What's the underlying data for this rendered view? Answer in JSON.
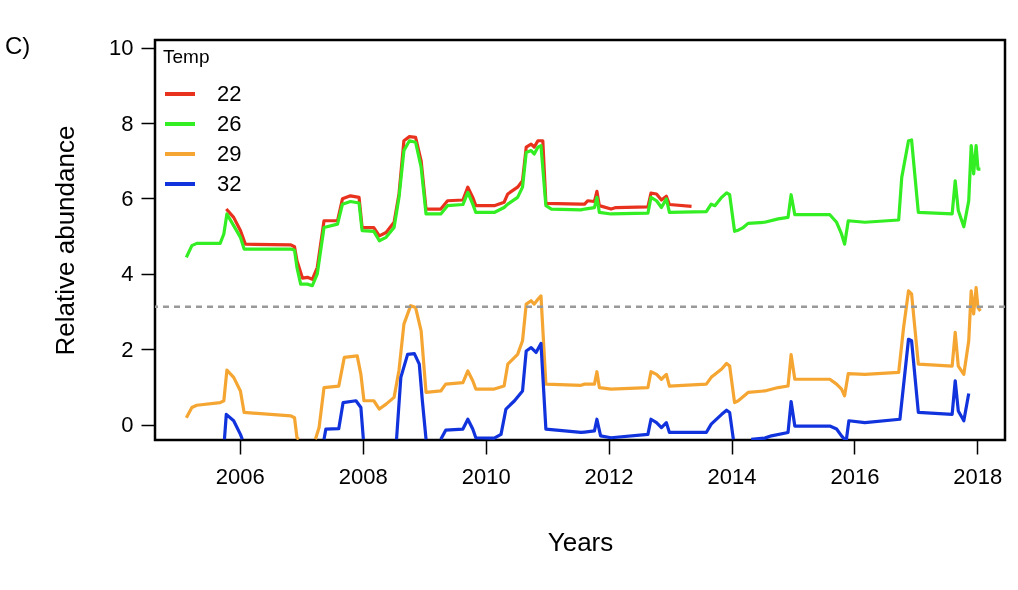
{
  "chart_data": {
    "type": "line",
    "title": "C)",
    "xlabel": "Years",
    "ylabel": "Relative abundance",
    "legend_title": "Temp",
    "legend": "top left",
    "grid": false,
    "xlim": [
      2004.62,
      2018.45
    ],
    "xticks": [
      2006,
      2008,
      2010,
      2012,
      2014,
      2016,
      2018
    ],
    "ylim": [
      -0.4,
      10.2
    ],
    "yticks": [
      0,
      2,
      4,
      6,
      8,
      10
    ],
    "ref_lines": [
      {
        "axis": "y",
        "value": 3.13,
        "color": "#999999",
        "line_style": "dashed"
      }
    ],
    "series": [
      {
        "name": "22",
        "color": "#e8321e",
        "x": [
          2005.78,
          2005.9,
          2006.01,
          2006.09,
          2006.83,
          2006.89,
          2006.93,
          2007.02,
          2007.1,
          2007.18,
          2007.26,
          2007.37,
          2007.59,
          2007.67,
          2007.8,
          2007.94,
          2007.99,
          2008.18,
          2008.27,
          2008.38,
          2008.51,
          2008.59,
          2008.67,
          2008.76,
          2008.86,
          2008.95,
          2009.03,
          2009.27,
          2009.38,
          2009.63,
          2009.71,
          2009.79,
          2009.84,
          2010.14,
          2010.3,
          2010.36,
          2010.52,
          2010.6,
          2010.66,
          2010.74,
          2010.79,
          2010.85,
          2010.93,
          2010.98,
          2011.55,
          2011.61,
          2011.66,
          2011.77,
          2011.81,
          2011.85,
          2012.04,
          2012.12,
          2012.64,
          2012.69,
          2012.78,
          2012.86,
          2012.94,
          2012.99,
          2013.35
        ],
        "values": [
          5.72,
          5.5,
          5.15,
          4.79,
          4.77,
          4.72,
          4.35,
          3.89,
          3.91,
          3.86,
          4.17,
          5.41,
          5.41,
          5.99,
          6.07,
          6.03,
          5.23,
          5.23,
          5.01,
          5.1,
          5.37,
          6.12,
          7.53,
          7.64,
          7.62,
          7.0,
          5.72,
          5.72,
          5.94,
          5.96,
          6.3,
          6.03,
          5.81,
          5.81,
          5.9,
          6.12,
          6.3,
          6.47,
          7.36,
          7.44,
          7.36,
          7.53,
          7.53,
          5.87,
          5.85,
          5.85,
          5.94,
          5.92,
          6.19,
          5.81,
          5.72,
          5.76,
          5.78,
          6.14,
          6.12,
          5.96,
          6.06,
          5.84,
          5.79
        ]
      },
      {
        "name": "26",
        "color": "#33ee22",
        "x": [
          2005.13,
          2005.22,
          2005.3,
          2005.68,
          2005.74,
          2005.79,
          2005.9,
          2006.01,
          2006.07,
          2006.83,
          2006.89,
          2006.93,
          2006.99,
          2007.1,
          2007.18,
          2007.26,
          2007.37,
          2007.59,
          2007.67,
          2007.8,
          2007.94,
          2007.99,
          2008.18,
          2008.27,
          2008.38,
          2008.51,
          2008.59,
          2008.67,
          2008.76,
          2008.86,
          2008.95,
          2009.03,
          2009.27,
          2009.38,
          2009.63,
          2009.71,
          2009.79,
          2009.84,
          2010.14,
          2010.3,
          2010.36,
          2010.52,
          2010.6,
          2010.66,
          2010.74,
          2010.79,
          2010.85,
          2010.9,
          2010.98,
          2011.07,
          2011.55,
          2011.61,
          2011.77,
          2011.81,
          2011.85,
          2012.04,
          2012.64,
          2012.69,
          2012.78,
          2012.86,
          2012.94,
          2012.99,
          2013.59,
          2013.67,
          2013.73,
          2013.84,
          2013.92,
          2013.97,
          2014.05,
          2014.11,
          2014.19,
          2014.27,
          2014.54,
          2014.76,
          2014.92,
          2014.97,
          2015.03,
          2015.6,
          2015.71,
          2015.79,
          2015.84,
          2015.9,
          2016.17,
          2016.72,
          2016.77,
          2016.88,
          2016.93,
          2017.04,
          2017.59,
          2017.64,
          2017.69,
          2017.78,
          2017.86,
          2017.9,
          2017.94,
          2017.98,
          2018.01,
          2018.05
        ],
        "values": [
          4.44,
          4.75,
          4.81,
          4.81,
          5.06,
          5.59,
          5.28,
          4.97,
          4.66,
          4.66,
          4.63,
          4.17,
          3.73,
          3.73,
          3.69,
          4.0,
          5.23,
          5.32,
          5.85,
          5.92,
          5.88,
          5.15,
          5.13,
          4.88,
          4.97,
          5.23,
          6.03,
          7.27,
          7.53,
          7.49,
          6.83,
          5.59,
          5.59,
          5.81,
          5.84,
          6.16,
          5.85,
          5.63,
          5.63,
          5.76,
          5.85,
          6.03,
          6.3,
          7.22,
          7.27,
          7.18,
          7.36,
          7.4,
          5.81,
          5.72,
          5.7,
          5.72,
          5.76,
          6.03,
          5.63,
          5.59,
          5.61,
          6.03,
          5.94,
          5.76,
          5.99,
          5.63,
          5.65,
          5.85,
          5.81,
          6.03,
          6.15,
          6.1,
          5.13,
          5.16,
          5.23,
          5.34,
          5.37,
          5.46,
          5.5,
          6.1,
          5.57,
          5.57,
          5.37,
          5.06,
          4.79,
          5.41,
          5.37,
          5.43,
          6.56,
          7.53,
          7.55,
          5.63,
          5.59,
          6.47,
          5.68,
          5.25,
          5.94,
          7.4,
          6.65,
          7.4,
          6.78,
          6.78
        ]
      },
      {
        "name": "29",
        "color": "#f5a632",
        "x": [
          2005.13,
          2005.22,
          2005.3,
          2005.68,
          2005.74,
          2005.79,
          2005.9,
          2006.01,
          2006.07,
          2006.83,
          2006.89,
          2006.93,
          2006.96,
          2007.1,
          2007.23,
          2007.29,
          2007.37,
          2007.61,
          2007.7,
          2007.91,
          2007.97,
          2008.02,
          2008.18,
          2008.27,
          2008.38,
          2008.51,
          2008.59,
          2008.67,
          2008.78,
          2008.86,
          2008.95,
          2009.03,
          2009.27,
          2009.35,
          2009.63,
          2009.71,
          2009.79,
          2009.84,
          2010.14,
          2010.3,
          2010.36,
          2010.52,
          2010.6,
          2010.66,
          2010.74,
          2010.79,
          2010.85,
          2010.9,
          2010.98,
          2011.55,
          2011.61,
          2011.77,
          2011.81,
          2011.85,
          2012.04,
          2012.64,
          2012.69,
          2012.78,
          2012.86,
          2012.94,
          2012.99,
          2013.59,
          2013.67,
          2013.84,
          2013.92,
          2013.97,
          2014.05,
          2014.11,
          2014.27,
          2014.54,
          2014.76,
          2014.92,
          2014.97,
          2015.03,
          2015.6,
          2015.71,
          2015.79,
          2015.84,
          2015.9,
          2016.17,
          2016.72,
          2016.8,
          2016.88,
          2016.93,
          2017.04,
          2017.59,
          2017.64,
          2017.69,
          2017.78,
          2017.86,
          2017.9,
          2017.94,
          2017.98,
          2018.01,
          2018.05
        ],
        "values": [
          0.19,
          0.46,
          0.52,
          0.59,
          0.64,
          1.45,
          1.26,
          0.9,
          0.33,
          0.24,
          0.19,
          -0.34,
          -0.38,
          null,
          -0.38,
          -0.07,
          0.99,
          1.03,
          1.79,
          1.83,
          1.34,
          0.64,
          0.64,
          0.42,
          0.55,
          0.73,
          1.45,
          2.67,
          3.16,
          3.11,
          2.49,
          0.86,
          0.9,
          1.08,
          1.12,
          1.43,
          1.17,
          0.95,
          0.95,
          1.03,
          1.61,
          1.87,
          2.23,
          3.2,
          3.29,
          3.2,
          3.33,
          3.42,
          1.08,
          1.05,
          1.08,
          1.08,
          1.41,
          0.99,
          0.95,
          0.99,
          1.41,
          1.34,
          1.21,
          1.34,
          1.03,
          1.08,
          1.26,
          1.48,
          1.63,
          1.56,
          0.59,
          0.64,
          0.86,
          0.9,
          0.99,
          1.03,
          1.86,
          1.21,
          1.21,
          1.08,
          0.95,
          0.77,
          1.36,
          1.34,
          1.39,
          2.58,
          3.55,
          3.47,
          1.61,
          1.56,
          2.45,
          1.56,
          1.34,
          2.23,
          3.55,
          2.94,
          3.64,
          3.11,
          3.02
        ]
      },
      {
        "name": "32",
        "color": "#1133dd",
        "x": [
          2005.75,
          2005.78,
          2005.9,
          2006.01,
          2006.04,
          2006.7,
          2007.37,
          2007.4,
          2007.61,
          2007.68,
          2007.89,
          2007.97,
          2008.01,
          2008.3,
          2008.55,
          2008.62,
          2008.73,
          2008.84,
          2008.92,
          2008.97,
          2009.03,
          2009.15,
          2009.27,
          2009.35,
          2009.63,
          2009.71,
          2009.79,
          2009.84,
          2010.14,
          2010.25,
          2010.33,
          2010.47,
          2010.6,
          2010.66,
          2010.74,
          2010.82,
          2010.9,
          2010.98,
          2011.55,
          2011.61,
          2011.77,
          2011.81,
          2011.87,
          2012.04,
          2012.64,
          2012.69,
          2012.78,
          2012.86,
          2012.94,
          2012.99,
          2013.59,
          2013.67,
          2013.84,
          2013.92,
          2013.97,
          2014.03,
          2014.18,
          2014.32,
          2014.54,
          2014.65,
          2014.92,
          2014.97,
          2015.03,
          2015.6,
          2015.71,
          2015.79,
          2015.84,
          2015.87,
          2015.91,
          2016.17,
          2016.74,
          2016.88,
          2016.93,
          2017.04,
          2017.59,
          2017.64,
          2017.69,
          2017.78,
          2017.86
        ],
        "values": [
          -0.38,
          0.28,
          0.11,
          -0.25,
          -0.38,
          null,
          -0.38,
          -0.11,
          -0.1,
          0.59,
          0.64,
          0.46,
          -0.38,
          null,
          -0.38,
          1.26,
          1.87,
          1.89,
          1.61,
          0.64,
          -0.38,
          null,
          -0.38,
          -0.14,
          -0.11,
          0.15,
          -0.11,
          -0.34,
          -0.35,
          -0.25,
          0.42,
          0.64,
          0.9,
          1.96,
          2.05,
          1.92,
          2.16,
          -0.11,
          -0.2,
          -0.19,
          -0.16,
          0.15,
          -0.29,
          -0.34,
          -0.25,
          0.15,
          0.06,
          -0.07,
          0.06,
          -0.2,
          -0.2,
          0.02,
          0.28,
          0.39,
          0.33,
          -0.38,
          null,
          -0.38,
          -0.35,
          -0.29,
          -0.2,
          0.62,
          -0.03,
          -0.03,
          -0.11,
          -0.29,
          -0.38,
          -0.38,
          0.11,
          0.06,
          0.15,
          2.27,
          2.23,
          0.33,
          0.28,
          1.17,
          0.37,
          0.11,
          0.83
        ]
      }
    ]
  }
}
